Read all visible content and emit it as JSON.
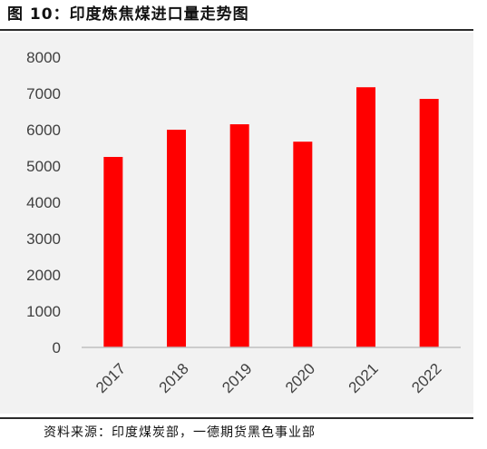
{
  "header": {
    "title": "图 10：印度炼焦煤进口量走势图"
  },
  "footer": {
    "source": "资料来源：印度煤炭部，一德期货黑色事业部"
  },
  "chart_data": {
    "type": "bar",
    "title": "",
    "xlabel": "",
    "ylabel": "",
    "categories": [
      "2017",
      "2018",
      "2019",
      "2020",
      "2021",
      "2022"
    ],
    "values": [
      5250,
      6000,
      6150,
      5670,
      7170,
      6850
    ],
    "ylim": [
      0,
      8000
    ],
    "yticks": [
      "0",
      "1000",
      "2000",
      "3000",
      "4000",
      "5000",
      "6000",
      "7000",
      "8000"
    ],
    "grid": false,
    "legend": "none",
    "bar_color": "#ff0000",
    "plot_background": "#f2f2f2",
    "axis_color": "#bfbfbf"
  }
}
